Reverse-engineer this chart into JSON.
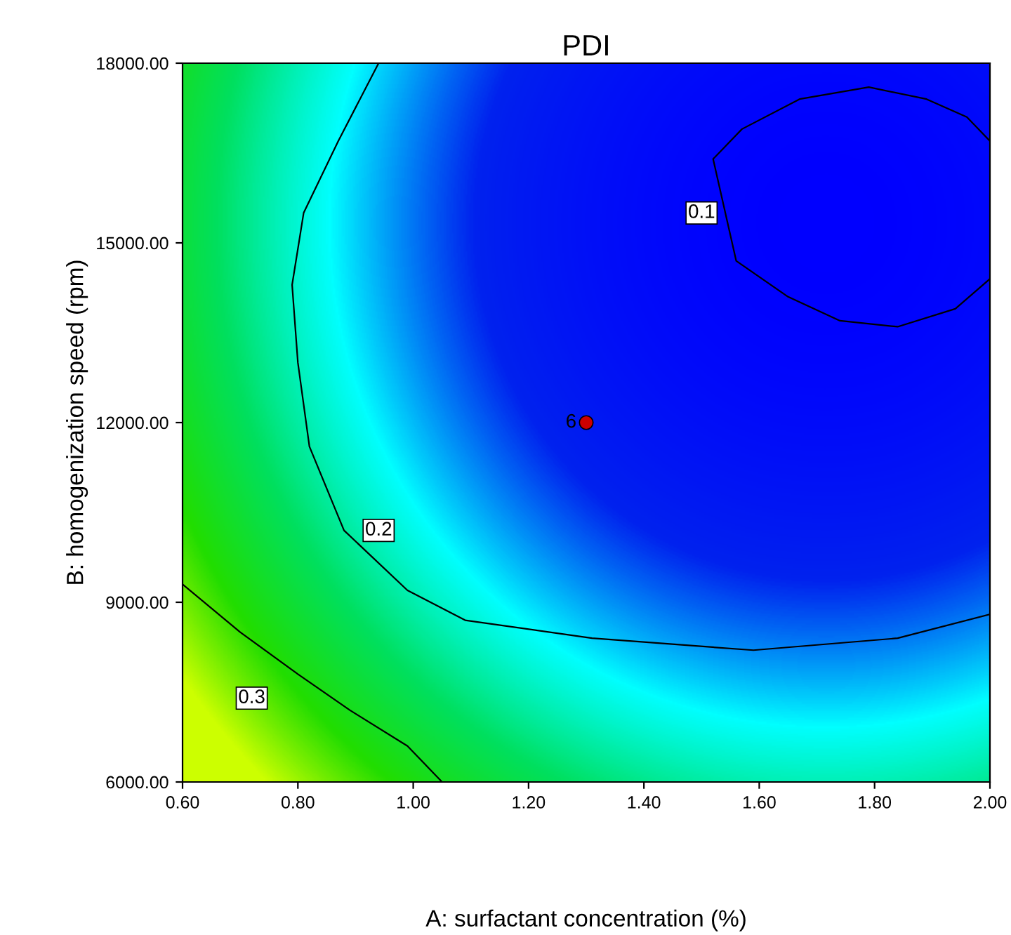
{
  "chart_data": {
    "type": "line",
    "title": "PDI",
    "xlabel": "A: surfactant concentration (%)",
    "ylabel": "B: homogenization speed (rpm)",
    "xlim": [
      0.6,
      2.0
    ],
    "ylim": [
      6000,
      18000
    ],
    "xticks": [
      {
        "value": 0.6,
        "label": "0.60"
      },
      {
        "value": 0.8,
        "label": "0.80"
      },
      {
        "value": 1.0,
        "label": "1.00"
      },
      {
        "value": 1.2,
        "label": "1.20"
      },
      {
        "value": 1.4,
        "label": "1.40"
      },
      {
        "value": 1.6,
        "label": "1.60"
      },
      {
        "value": 1.8,
        "label": "1.80"
      },
      {
        "value": 2.0,
        "label": "2.00"
      }
    ],
    "yticks": [
      {
        "value": 6000,
        "label": "6000.00"
      },
      {
        "value": 9000,
        "label": "9000.00"
      },
      {
        "value": 12000,
        "label": "12000.00"
      },
      {
        "value": 15000,
        "label": "15000.00"
      },
      {
        "value": 18000,
        "label": "18000.00"
      }
    ],
    "grid": false,
    "line_style": "solid",
    "series": [
      {
        "color": "#000000",
        "x": [
          2.0,
          1.94,
          1.84,
          1.74,
          1.65,
          1.56,
          1.52,
          1.57,
          1.67,
          1.79,
          1.89,
          1.96,
          2.0
        ],
        "values": [
          14400,
          13900,
          13600,
          13700,
          14100,
          14700,
          16400,
          16900,
          17400,
          17600,
          17400,
          17100,
          16700
        ]
      },
      {
        "color": "#000000",
        "x": [
          0.94,
          0.87,
          0.81,
          0.79,
          0.8,
          0.82,
          0.88,
          0.99,
          1.09,
          1.31,
          1.59,
          1.84,
          2.0
        ],
        "values": [
          18000,
          16700,
          15500,
          14300,
          13000,
          11600,
          10200,
          9200,
          8700,
          8400,
          8200,
          8400,
          8800
        ]
      },
      {
        "color": "#000000",
        "x": [
          0.6,
          0.7,
          0.8,
          0.89,
          0.99,
          1.05
        ],
        "values": [
          9300,
          8500,
          7800,
          7200,
          6600,
          6000
        ]
      },
      {
        "type": "scatter",
        "name": "6",
        "color": "#cc0000",
        "marker": "circle",
        "x": [
          1.3
        ],
        "values": [
          12000
        ]
      }
    ],
    "annotations": [
      {
        "text": "0.1",
        "x": 1.5,
        "y": 15500
      },
      {
        "text": "0.2",
        "x": 0.94,
        "y": 10200
      },
      {
        "text": "0.3",
        "x": 0.72,
        "y": 7400
      }
    ]
  }
}
